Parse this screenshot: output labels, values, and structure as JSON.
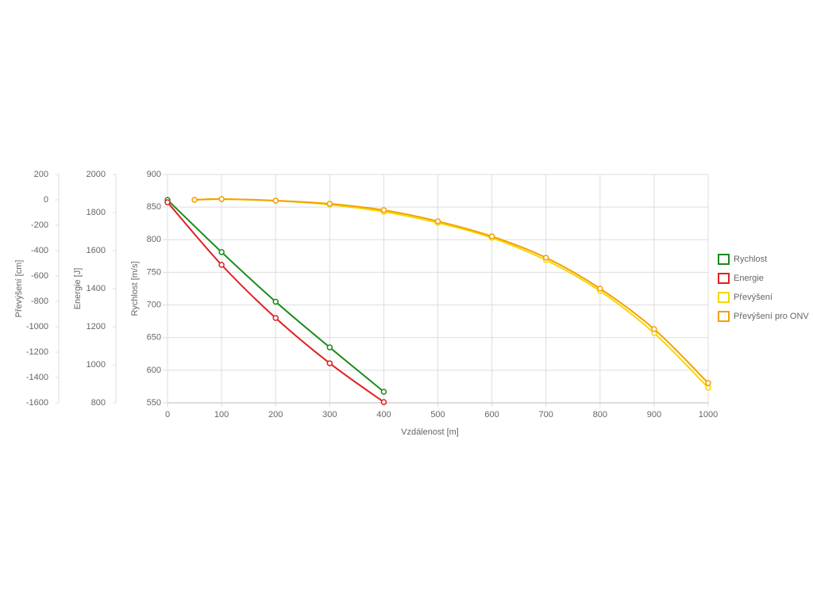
{
  "chart_data": {
    "type": "line",
    "x_label": "Vzdálenost [m]",
    "y_label": "Rychlost [m/s]",
    "y2_label": "Energie [J]",
    "y3_label": "Převýšení [cm]",
    "xlim": [
      0,
      1000
    ],
    "xticks": [
      0,
      100,
      200,
      300,
      400,
      500,
      600,
      700,
      800,
      900,
      1000
    ],
    "ylim": [
      550,
      900
    ],
    "yticks": [
      550,
      600,
      650,
      700,
      750,
      800,
      850,
      900
    ],
    "y2lim": [
      800,
      2000
    ],
    "y2ticks": [
      800,
      1000,
      1200,
      1400,
      1600,
      1800,
      2000
    ],
    "y3lim": [
      -1600,
      200
    ],
    "y3ticks": [
      -1600,
      -1400,
      -1200,
      -1000,
      -800,
      -600,
      -400,
      -200,
      0,
      200
    ],
    "grid": true,
    "legend": "right",
    "series": [
      {
        "name": "Rychlost",
        "color": "#1a8a1a",
        "axis": "y",
        "x": [
          0,
          100,
          200,
          300,
          400
        ],
        "values": [
          861,
          781,
          705,
          635,
          567
        ]
      },
      {
        "name": "Energie",
        "color": "#e02020",
        "axis": "y2",
        "x": [
          0,
          100,
          200,
          300,
          400
        ],
        "values": [
          1854,
          1525,
          1246,
          1008,
          804
        ]
      },
      {
        "name": "Převýšení",
        "color": "#f5d800",
        "axis": "y3",
        "x": [
          50,
          100,
          200,
          300,
          400,
          500,
          600,
          700,
          800,
          900,
          1000
        ],
        "values": [
          0,
          5,
          -7,
          -38,
          -94,
          -181,
          -300,
          -475,
          -719,
          -1050,
          -1481
        ]
      },
      {
        "name": "Převýšení pro ONV",
        "color": "#f5a000",
        "axis": "y3",
        "x": [
          50,
          100,
          200,
          300,
          400,
          500,
          600,
          700,
          800,
          900,
          1000
        ],
        "values": [
          0,
          6,
          -6,
          -31,
          -81,
          -169,
          -288,
          -456,
          -700,
          -1019,
          -1444
        ]
      }
    ]
  }
}
